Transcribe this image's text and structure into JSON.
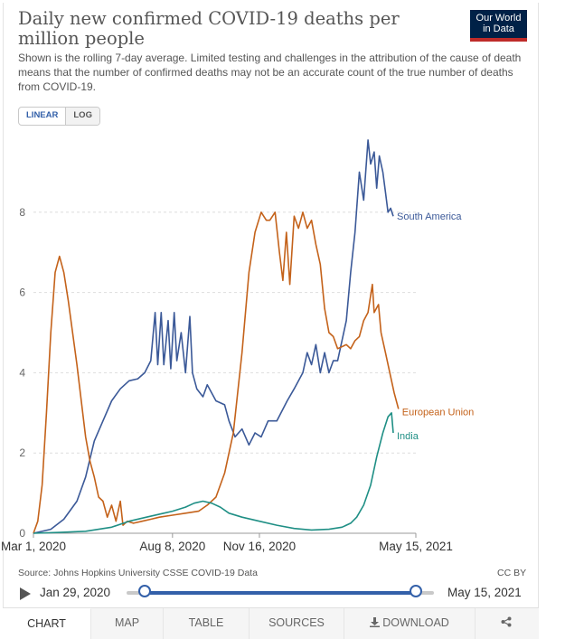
{
  "header": {
    "title": "Daily new confirmed COVID-19 deaths per million people",
    "subtitle": "Shown is the rolling 7-day average. Limited testing and challenges in the attribution of the cause of death means that the number of confirmed deaths may not be an accurate count of the true number of deaths from COVID-19.",
    "logo_line1": "Our World",
    "logo_line2": "in Data"
  },
  "scale_toggle": {
    "linear": "LINEAR",
    "log": "LOG",
    "selected": "LINEAR"
  },
  "chart_data": {
    "type": "line",
    "title": "Daily new confirmed COVID-19 deaths per million people",
    "xlabel": "",
    "ylabel": "",
    "ylim": [
      0,
      10
    ],
    "yticks": [
      "0",
      "2",
      "4",
      "6",
      "8"
    ],
    "ytick_values": [
      0,
      2,
      4,
      6,
      8
    ],
    "x_range": [
      0,
      440
    ],
    "xticks": [
      {
        "label": "Mar 1, 2020",
        "day": 0
      },
      {
        "label": "Aug 8, 2020",
        "day": 160
      },
      {
        "label": "Nov 16, 2020",
        "day": 260
      },
      {
        "label": "May 15, 2021",
        "day": 440
      }
    ],
    "grid": true,
    "series": [
      {
        "name": "South America",
        "color": "#3b5998",
        "end_label": "South America",
        "points": [
          [
            0,
            0
          ],
          [
            20,
            0.1
          ],
          [
            35,
            0.35
          ],
          [
            50,
            0.8
          ],
          [
            60,
            1.4
          ],
          [
            70,
            2.3
          ],
          [
            80,
            2.8
          ],
          [
            90,
            3.3
          ],
          [
            100,
            3.6
          ],
          [
            110,
            3.8
          ],
          [
            120,
            3.85
          ],
          [
            128,
            4.0
          ],
          [
            135,
            4.3
          ],
          [
            140,
            5.5
          ],
          [
            143,
            4.2
          ],
          [
            147,
            5.5
          ],
          [
            150,
            4.2
          ],
          [
            155,
            5.3
          ],
          [
            158,
            4.1
          ],
          [
            162,
            5.5
          ],
          [
            165,
            4.3
          ],
          [
            170,
            5.0
          ],
          [
            175,
            4.0
          ],
          [
            180,
            5.4
          ],
          [
            183,
            4.0
          ],
          [
            188,
            3.6
          ],
          [
            195,
            3.4
          ],
          [
            200,
            3.7
          ],
          [
            210,
            3.3
          ],
          [
            220,
            3.2
          ],
          [
            225,
            2.8
          ],
          [
            232,
            2.4
          ],
          [
            240,
            2.6
          ],
          [
            248,
            2.2
          ],
          [
            255,
            2.5
          ],
          [
            262,
            2.4
          ],
          [
            270,
            2.8
          ],
          [
            280,
            2.8
          ],
          [
            292,
            3.3
          ],
          [
            300,
            3.6
          ],
          [
            310,
            4.0
          ],
          [
            315,
            4.5
          ],
          [
            320,
            4.2
          ],
          [
            325,
            4.7
          ],
          [
            330,
            4.0
          ],
          [
            335,
            4.5
          ],
          [
            340,
            4.0
          ],
          [
            345,
            4.3
          ],
          [
            350,
            4.3
          ],
          [
            355,
            4.8
          ],
          [
            360,
            5.3
          ],
          [
            365,
            6.5
          ],
          [
            370,
            7.5
          ],
          [
            375,
            9.0
          ],
          [
            380,
            8.3
          ],
          [
            385,
            9.8
          ],
          [
            388,
            9.2
          ],
          [
            392,
            9.5
          ],
          [
            395,
            8.6
          ],
          [
            398,
            9.4
          ],
          [
            402,
            9.0
          ],
          [
            405,
            8.5
          ],
          [
            408,
            8.0
          ],
          [
            411,
            8.1
          ],
          [
            414,
            7.9
          ]
        ]
      },
      {
        "name": "European Union",
        "color": "#c4621a",
        "end_label": "European Union",
        "points": [
          [
            0,
            0
          ],
          [
            5,
            0.3
          ],
          [
            10,
            1.2
          ],
          [
            15,
            3.0
          ],
          [
            20,
            5.0
          ],
          [
            25,
            6.5
          ],
          [
            30,
            6.9
          ],
          [
            35,
            6.5
          ],
          [
            40,
            5.8
          ],
          [
            45,
            5.0
          ],
          [
            50,
            4.2
          ],
          [
            55,
            3.3
          ],
          [
            60,
            2.4
          ],
          [
            65,
            1.8
          ],
          [
            70,
            1.4
          ],
          [
            75,
            0.9
          ],
          [
            80,
            0.8
          ],
          [
            85,
            0.4
          ],
          [
            90,
            0.7
          ],
          [
            95,
            0.3
          ],
          [
            100,
            0.8
          ],
          [
            103,
            0.2
          ],
          [
            108,
            0.3
          ],
          [
            115,
            0.25
          ],
          [
            125,
            0.3
          ],
          [
            135,
            0.35
          ],
          [
            145,
            0.4
          ],
          [
            160,
            0.45
          ],
          [
            175,
            0.5
          ],
          [
            190,
            0.55
          ],
          [
            200,
            0.7
          ],
          [
            210,
            0.9
          ],
          [
            220,
            1.5
          ],
          [
            230,
            2.5
          ],
          [
            240,
            4.5
          ],
          [
            248,
            6.5
          ],
          [
            255,
            7.5
          ],
          [
            262,
            8.0
          ],
          [
            268,
            7.8
          ],
          [
            272,
            7.8
          ],
          [
            278,
            8.0
          ],
          [
            283,
            7.0
          ],
          [
            287,
            6.3
          ],
          [
            291,
            7.5
          ],
          [
            295,
            6.2
          ],
          [
            300,
            7.9
          ],
          [
            305,
            7.6
          ],
          [
            310,
            8.0
          ],
          [
            315,
            7.6
          ],
          [
            320,
            7.8
          ],
          [
            325,
            7.2
          ],
          [
            330,
            6.7
          ],
          [
            335,
            5.6
          ],
          [
            340,
            5.0
          ],
          [
            345,
            4.9
          ],
          [
            350,
            4.6
          ],
          [
            360,
            4.7
          ],
          [
            365,
            4.6
          ],
          [
            370,
            4.8
          ],
          [
            375,
            4.9
          ],
          [
            380,
            5.3
          ],
          [
            385,
            5.5
          ],
          [
            390,
            6.2
          ],
          [
            392,
            5.5
          ],
          [
            397,
            5.7
          ],
          [
            400,
            5.0
          ],
          [
            405,
            4.5
          ],
          [
            410,
            4.0
          ],
          [
            415,
            3.5
          ],
          [
            420,
            3.1
          ]
        ]
      },
      {
        "name": "India",
        "color": "#1f8f85",
        "end_label": "India",
        "points": [
          [
            0,
            0
          ],
          [
            30,
            0.02
          ],
          [
            60,
            0.05
          ],
          [
            90,
            0.15
          ],
          [
            110,
            0.3
          ],
          [
            130,
            0.4
          ],
          [
            150,
            0.5
          ],
          [
            160,
            0.55
          ],
          [
            175,
            0.65
          ],
          [
            185,
            0.75
          ],
          [
            195,
            0.8
          ],
          [
            205,
            0.75
          ],
          [
            215,
            0.65
          ],
          [
            225,
            0.5
          ],
          [
            240,
            0.4
          ],
          [
            260,
            0.3
          ],
          [
            280,
            0.2
          ],
          [
            300,
            0.12
          ],
          [
            320,
            0.08
          ],
          [
            340,
            0.1
          ],
          [
            355,
            0.15
          ],
          [
            365,
            0.25
          ],
          [
            372,
            0.4
          ],
          [
            380,
            0.7
          ],
          [
            388,
            1.2
          ],
          [
            395,
            1.9
          ],
          [
            402,
            2.5
          ],
          [
            408,
            2.9
          ],
          [
            412,
            3.0
          ],
          [
            414,
            2.5
          ]
        ]
      }
    ]
  },
  "footer": {
    "source": "Source: Johns Hopkins University CSSE COVID-19 Data",
    "license": "CC BY",
    "timeline_start": "Jan 29, 2020",
    "timeline_end": "May 15, 2021",
    "timeline_start_fraction": 0.0,
    "timeline_end_fraction": 1.0
  },
  "tabs": [
    {
      "label": "CHART",
      "active": true
    },
    {
      "label": "MAP",
      "active": false
    },
    {
      "label": "TABLE",
      "active": false
    },
    {
      "label": "SOURCES",
      "active": false
    },
    {
      "label": "DOWNLOAD",
      "active": false
    }
  ],
  "icons": {
    "download": "download-icon",
    "share": "share-icon",
    "play": "play-icon"
  }
}
